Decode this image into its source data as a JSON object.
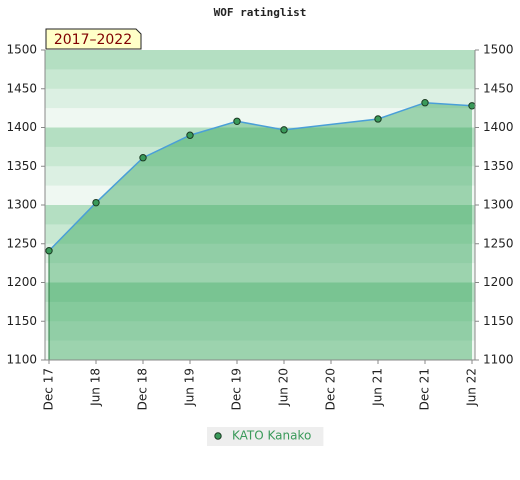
{
  "chart_data": {
    "type": "line",
    "title": "WOF ratinglist",
    "badge": "2017–2022",
    "categories": [
      "Dec 17",
      "Jun 18",
      "Dec 18",
      "Jun 19",
      "Dec 19",
      "Jun 20",
      "Dec 20",
      "Jun 21",
      "Dec 21",
      "Jun 22"
    ],
    "series": [
      {
        "name": "KATO Kanako",
        "color": "#4a9fd8",
        "x": [
          "Dec 17",
          "Jun 18",
          "Dec 18",
          "Jun 19",
          "Dec 19",
          "Jun 20",
          "Jun 21",
          "Dec 21",
          "Jun 22"
        ],
        "values": [
          1241,
          1303,
          1361,
          1390,
          1408,
          1397,
          1411,
          1432,
          1428
        ]
      }
    ],
    "ylim": [
      1100,
      1500
    ],
    "yticks": [
      1100,
      1150,
      1200,
      1250,
      1300,
      1350,
      1400,
      1450,
      1500
    ],
    "y2lim": [
      1100,
      1500
    ],
    "y2ticks": [
      1100,
      1150,
      1200,
      1250,
      1300,
      1350,
      1400,
      1450,
      1500
    ],
    "legend": "bottom"
  }
}
